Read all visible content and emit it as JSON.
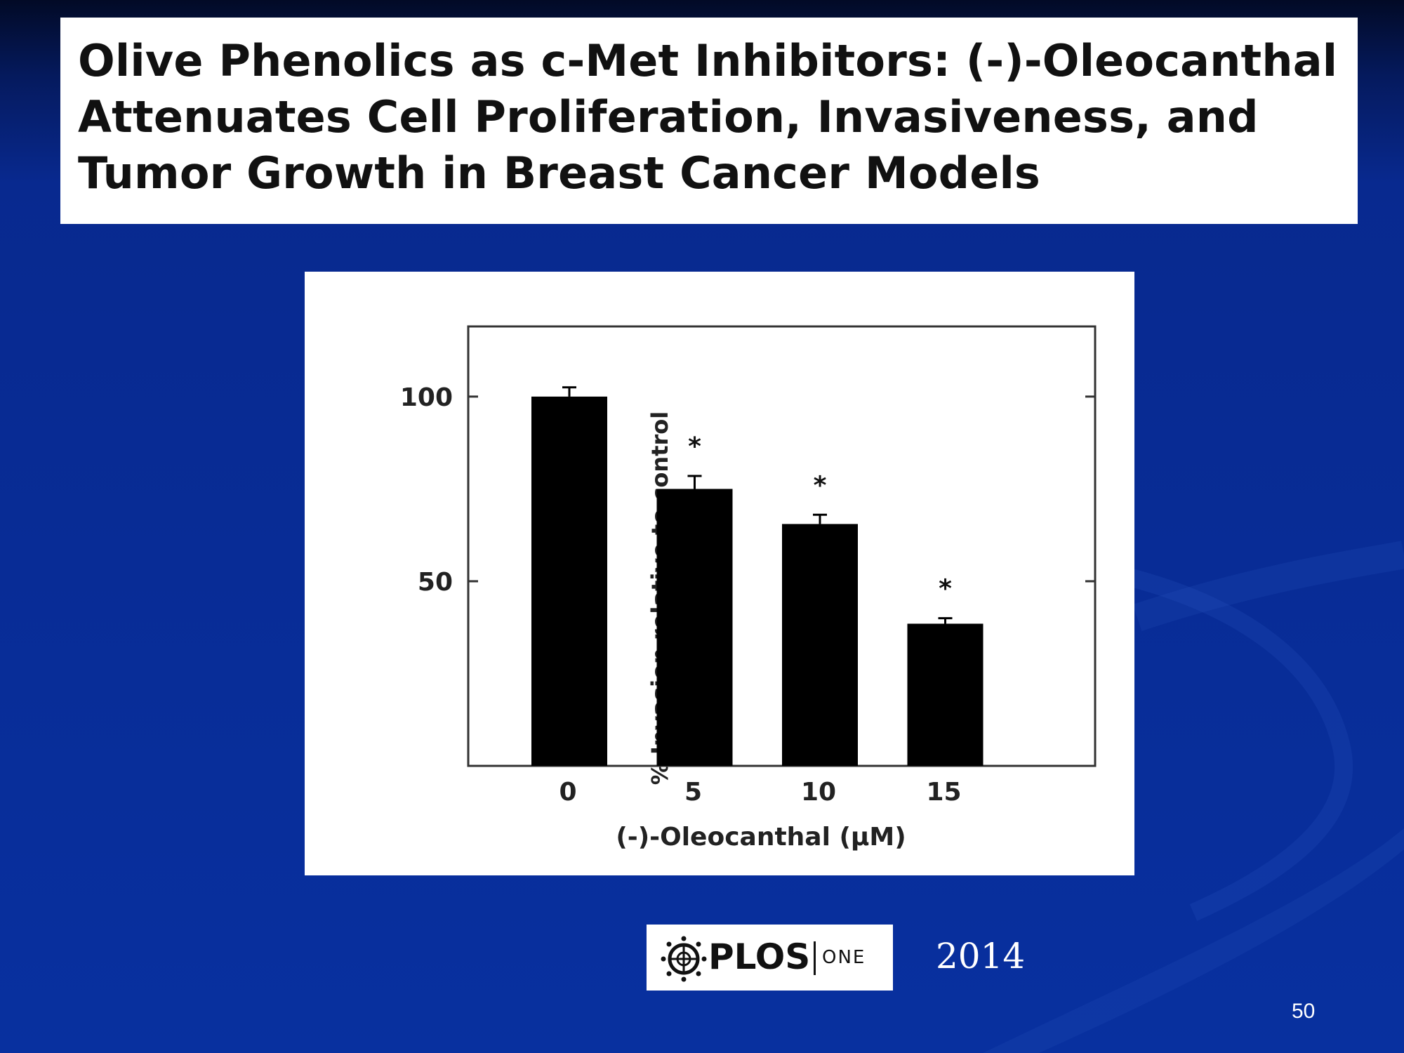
{
  "slide": {
    "title": "Olive Phenolics as c-Met Inhibitors: (-)-Oleocanthal Attenuates Cell Proliferation, Invasiveness, and Tumor Growth in Breast Cancer Models",
    "journal_logo": "PLOS",
    "journal_logo_suffix": "ONE",
    "year": "2014",
    "slide_number": "50",
    "colors": {
      "background": "#08309f",
      "panel": "#ffffff",
      "bar": "#000000"
    }
  },
  "chart_data": {
    "type": "bar",
    "title": "",
    "xlabel": "(-)-Oleocanthal (µM)",
    "ylabel": "% Invasion relative to control",
    "categories": [
      "0",
      "5",
      "10",
      "15"
    ],
    "values": [
      100,
      75,
      65.5,
      38.5
    ],
    "errors": [
      2.5,
      3.5,
      2.5,
      1.5
    ],
    "significance": [
      "",
      "*",
      "*",
      "*"
    ],
    "ylim": [
      0,
      119
    ],
    "yticks": [
      50,
      100
    ],
    "ytick_labels": [
      "50",
      "100"
    ],
    "legend": false,
    "grid": false
  }
}
